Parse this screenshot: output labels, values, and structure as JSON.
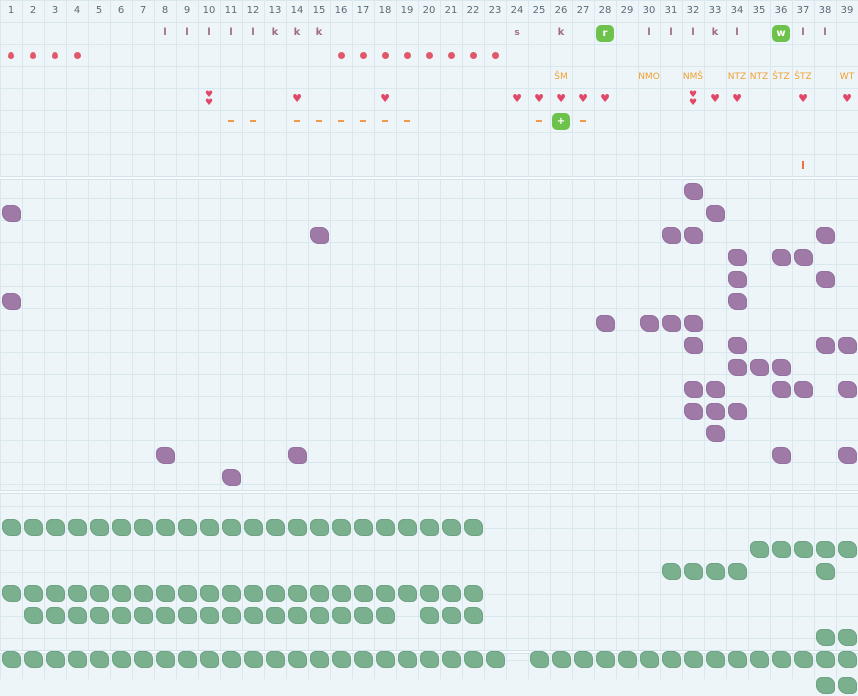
{
  "colors": {
    "purple": "#a07aa6",
    "green": "#7ab08e",
    "red": "#e0596a",
    "orange": "#f0a030",
    "badge": "#6cc24a"
  },
  "columns": [
    "1",
    "2",
    "3",
    "4",
    "5",
    "6",
    "7",
    "8",
    "9",
    "10",
    "11",
    "12",
    "13",
    "14",
    "15",
    "16",
    "17",
    "18",
    "19",
    "20",
    "21",
    "22",
    "23",
    "24",
    "25",
    "26",
    "27",
    "28",
    "29",
    "30",
    "31",
    "32",
    "33",
    "34",
    "35",
    "36",
    "37",
    "38",
    "39"
  ],
  "marks": [
    {
      "col": 8,
      "row": 1,
      "type": "letter",
      "text": "l"
    },
    {
      "col": 9,
      "row": 1,
      "type": "letter",
      "text": "l"
    },
    {
      "col": 10,
      "row": 1,
      "type": "letter",
      "text": "l"
    },
    {
      "col": 11,
      "row": 1,
      "type": "letter",
      "text": "l"
    },
    {
      "col": 12,
      "row": 1,
      "type": "letter",
      "text": "l"
    },
    {
      "col": 13,
      "row": 1,
      "type": "letter",
      "text": "k"
    },
    {
      "col": 14,
      "row": 1,
      "type": "letter",
      "text": "k"
    },
    {
      "col": 15,
      "row": 1,
      "type": "letter",
      "text": "k"
    },
    {
      "col": 24,
      "row": 1,
      "type": "s",
      "text": "s"
    },
    {
      "col": 26,
      "row": 1,
      "type": "letter",
      "text": "k"
    },
    {
      "col": 28,
      "row": 1,
      "type": "badge",
      "text": "r"
    },
    {
      "col": 30,
      "row": 1,
      "type": "letter",
      "text": "l"
    },
    {
      "col": 31,
      "row": 1,
      "type": "letter",
      "text": "l"
    },
    {
      "col": 32,
      "row": 1,
      "type": "letter",
      "text": "l"
    },
    {
      "col": 33,
      "row": 1,
      "type": "letter",
      "text": "k"
    },
    {
      "col": 34,
      "row": 1,
      "type": "letter",
      "text": "l"
    },
    {
      "col": 36,
      "row": 1,
      "type": "badge",
      "text": "w"
    },
    {
      "col": 37,
      "row": 1,
      "type": "letter",
      "text": "l"
    },
    {
      "col": 38,
      "row": 1,
      "type": "letter",
      "text": "l"
    },
    {
      "col": 1,
      "row": 2,
      "type": "drop"
    },
    {
      "col": 2,
      "row": 2,
      "type": "drop"
    },
    {
      "col": 3,
      "row": 2,
      "type": "drop"
    },
    {
      "col": 4,
      "row": 2,
      "type": "dot"
    },
    {
      "col": 16,
      "row": 2,
      "type": "dot"
    },
    {
      "col": 17,
      "row": 2,
      "type": "dot"
    },
    {
      "col": 18,
      "row": 2,
      "type": "dot"
    },
    {
      "col": 19,
      "row": 2,
      "type": "dot"
    },
    {
      "col": 20,
      "row": 2,
      "type": "dot"
    },
    {
      "col": 21,
      "row": 2,
      "type": "dot"
    },
    {
      "col": 22,
      "row": 2,
      "type": "dot"
    },
    {
      "col": 23,
      "row": 2,
      "type": "dot"
    },
    {
      "col": 26,
      "row": 3,
      "type": "code",
      "text": "ŠM"
    },
    {
      "col": 30,
      "row": 3,
      "type": "code",
      "text": "NMO"
    },
    {
      "col": 32,
      "row": 3,
      "type": "code",
      "text": "NMŠ"
    },
    {
      "col": 34,
      "row": 3,
      "type": "code",
      "text": "NTZ"
    },
    {
      "col": 35,
      "row": 3,
      "type": "code",
      "text": "NTZ"
    },
    {
      "col": 36,
      "row": 3,
      "type": "code",
      "text": "ŠTZ"
    },
    {
      "col": 37,
      "row": 3,
      "type": "code",
      "text": "ŠTZ"
    },
    {
      "col": 39,
      "row": 3,
      "type": "code",
      "text": "WT"
    },
    {
      "col": 10,
      "row": 4,
      "type": "heart2",
      "text": "♥"
    },
    {
      "col": 14,
      "row": 4,
      "type": "heart",
      "text": "♥"
    },
    {
      "col": 18,
      "row": 4,
      "type": "heart",
      "text": "♥"
    },
    {
      "col": 24,
      "row": 4,
      "type": "heart",
      "text": "♥"
    },
    {
      "col": 25,
      "row": 4,
      "type": "heart",
      "text": "♥"
    },
    {
      "col": 26,
      "row": 4,
      "type": "heart",
      "text": "♥"
    },
    {
      "col": 27,
      "row": 4,
      "type": "heart",
      "text": "♥"
    },
    {
      "col": 28,
      "row": 4,
      "type": "heart",
      "text": "♥"
    },
    {
      "col": 32,
      "row": 4,
      "type": "heart2",
      "text": "♥"
    },
    {
      "col": 33,
      "row": 4,
      "type": "heart",
      "text": "♥"
    },
    {
      "col": 34,
      "row": 4,
      "type": "heart",
      "text": "♥"
    },
    {
      "col": 37,
      "row": 4,
      "type": "heart",
      "text": "♥"
    },
    {
      "col": 39,
      "row": 4,
      "type": "heart",
      "text": "♥"
    },
    {
      "col": 11,
      "row": 5,
      "type": "dash"
    },
    {
      "col": 12,
      "row": 5,
      "type": "dash"
    },
    {
      "col": 14,
      "row": 5,
      "type": "dash"
    },
    {
      "col": 15,
      "row": 5,
      "type": "dash"
    },
    {
      "col": 16,
      "row": 5,
      "type": "dash"
    },
    {
      "col": 17,
      "row": 5,
      "type": "dash"
    },
    {
      "col": 18,
      "row": 5,
      "type": "dash"
    },
    {
      "col": 19,
      "row": 5,
      "type": "dash"
    },
    {
      "col": 25,
      "row": 5,
      "type": "dash"
    },
    {
      "col": 26,
      "row": 5,
      "type": "badge",
      "text": "+"
    },
    {
      "col": 27,
      "row": 5,
      "type": "dash"
    },
    {
      "col": 37,
      "row": 7,
      "type": "tick"
    }
  ],
  "purple_blobs": [
    [
      32,
      8
    ],
    [
      1,
      9
    ],
    [
      33,
      9
    ],
    [
      15,
      10
    ],
    [
      31,
      10
    ],
    [
      32,
      10
    ],
    [
      38,
      10
    ],
    [
      34,
      11
    ],
    [
      36,
      11
    ],
    [
      37,
      11
    ],
    [
      34,
      12
    ],
    [
      38,
      12
    ],
    [
      1,
      13
    ],
    [
      34,
      13
    ],
    [
      28,
      14
    ],
    [
      30,
      14
    ],
    [
      31,
      14
    ],
    [
      32,
      14
    ],
    [
      32,
      15
    ],
    [
      34,
      15
    ],
    [
      38,
      15
    ],
    [
      39,
      15
    ],
    [
      34,
      16
    ],
    [
      35,
      16
    ],
    [
      36,
      16
    ],
    [
      32,
      17
    ],
    [
      33,
      17
    ],
    [
      36,
      17
    ],
    [
      37,
      17
    ],
    [
      39,
      17
    ],
    [
      32,
      18
    ],
    [
      33,
      18
    ],
    [
      34,
      18
    ],
    [
      33,
      19
    ],
    [
      8,
      20
    ],
    [
      14,
      20
    ],
    [
      36,
      20
    ],
    [
      39,
      20
    ],
    [
      11,
      21
    ]
  ],
  "green_rows": [
    {
      "row": 23,
      "ranges": [
        [
          1,
          22
        ]
      ]
    },
    {
      "row": 24,
      "ranges": [
        [
          35,
          39
        ]
      ]
    },
    {
      "row": 25,
      "ranges": [
        [
          31,
          34
        ],
        [
          38,
          38
        ]
      ]
    },
    {
      "row": 26,
      "ranges": [
        [
          1,
          22
        ]
      ]
    },
    {
      "row": 27,
      "ranges": [
        [
          2,
          18
        ],
        [
          20,
          22
        ]
      ]
    },
    {
      "row": 28,
      "ranges": [
        [
          38,
          39
        ]
      ]
    },
    {
      "row": 29,
      "ranges": [
        [
          1,
          23
        ],
        [
          25,
          39
        ]
      ]
    },
    {
      "row": 30,
      "ranges": [
        [
          38,
          39
        ]
      ]
    }
  ]
}
